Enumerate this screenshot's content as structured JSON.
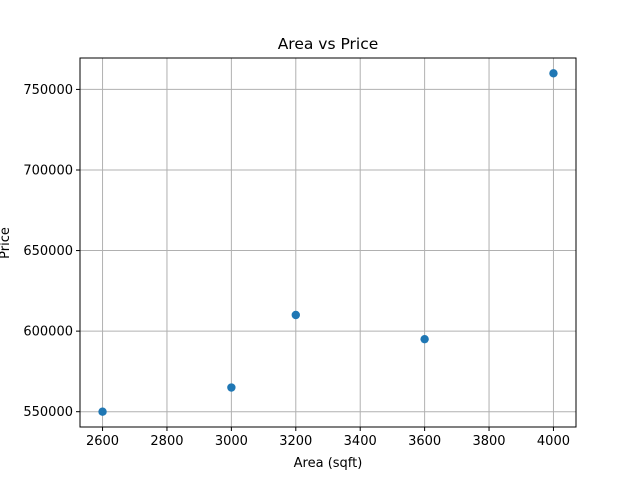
{
  "chart_data": {
    "type": "scatter",
    "title": "Area vs Price",
    "xlabel": "Area (sqft)",
    "ylabel": "Price",
    "xlim": [
      2530,
      4070
    ],
    "ylim": [
      540500,
      769500
    ],
    "xticks": [
      2600,
      2800,
      3000,
      3200,
      3400,
      3600,
      3800,
      4000
    ],
    "yticks": [
      550000,
      600000,
      650000,
      700000,
      750000
    ],
    "grid": true,
    "series": [
      {
        "color": "#1f77b4",
        "x": [
          2600,
          3000,
          3200,
          3600,
          4000
        ],
        "y": [
          550000,
          565000,
          610000,
          595000,
          760000
        ]
      }
    ]
  }
}
